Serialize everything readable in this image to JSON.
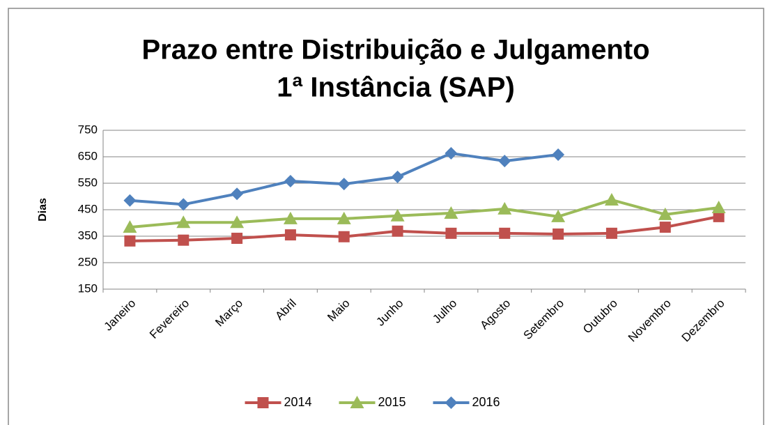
{
  "chart_data": {
    "type": "line",
    "title": [
      "Prazo entre Distribuição e Julgamento",
      "1ª Instância (SAP)"
    ],
    "y_label": "Dias",
    "categories": [
      "Janeiro",
      "Fevereiro",
      "Março",
      "Abril",
      "Maio",
      "Junho",
      "Julho",
      "Agosto",
      "Setembro",
      "Outubro",
      "Novembro",
      "Dezembro"
    ],
    "series": [
      {
        "name": "2014",
        "color": "#c0504d",
        "marker": "square",
        "values": [
          332,
          335,
          342,
          355,
          348,
          369,
          361,
          361,
          358,
          361,
          384,
          424
        ]
      },
      {
        "name": "2015",
        "color": "#9bbb59",
        "marker": "triangle",
        "values": [
          384,
          402,
          402,
          416,
          416,
          427,
          437,
          453,
          424,
          487,
          432,
          458
        ]
      },
      {
        "name": "2016",
        "color": "#4f81bd",
        "marker": "diamond",
        "values": [
          485,
          470,
          510,
          558,
          547,
          574,
          663,
          634,
          658,
          null,
          null,
          null
        ]
      }
    ],
    "ylim": [
      150,
      750
    ],
    "yticks": [
      150,
      250,
      350,
      450,
      550,
      650,
      750
    ],
    "grid": true,
    "legend": "bottom"
  }
}
